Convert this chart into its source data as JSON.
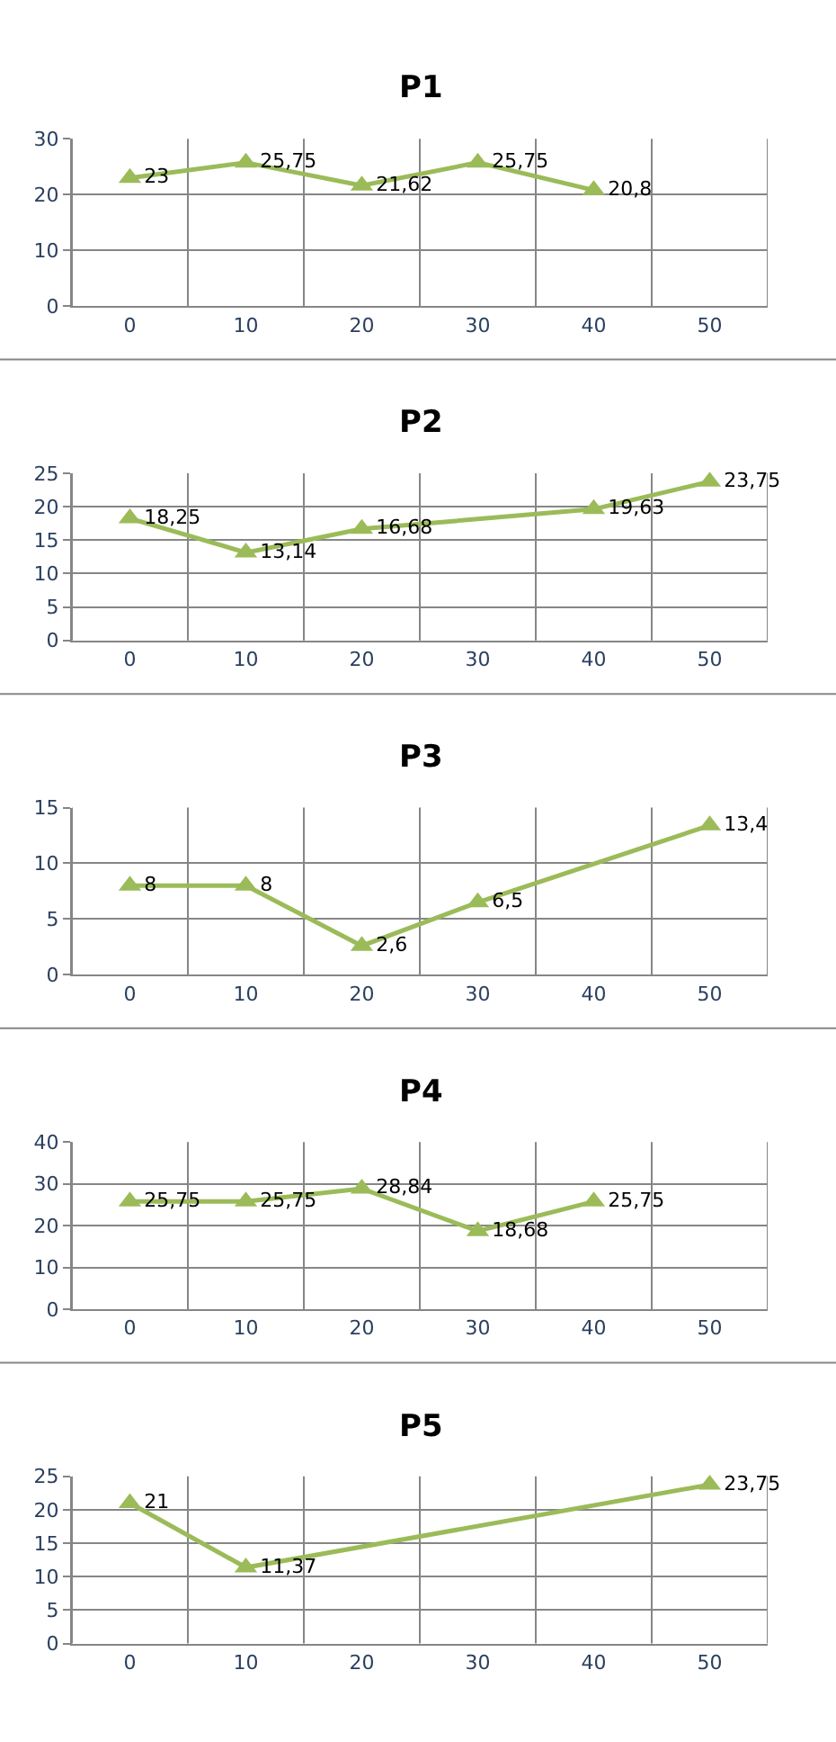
{
  "chart_data": [
    {
      "type": "line",
      "title": "P1",
      "categories": [
        "0",
        "10",
        "20",
        "30",
        "40",
        "50"
      ],
      "ylim": [
        0,
        30
      ],
      "yticks": [
        0,
        10,
        20,
        30
      ],
      "grid": true,
      "marker": "triangle",
      "line_style": "solid",
      "series": [
        {
          "color": "#9bbb59",
          "values": [
            23,
            25.75,
            21.62,
            25.75,
            20.8,
            null
          ],
          "value_labels": [
            "23",
            "25,75",
            "21,62",
            "25,75",
            "20,8",
            null
          ]
        }
      ]
    },
    {
      "type": "line",
      "title": "P2",
      "categories": [
        "0",
        "10",
        "20",
        "30",
        "40",
        "50"
      ],
      "ylim": [
        0,
        25
      ],
      "yticks": [
        0,
        5,
        10,
        15,
        20,
        25
      ],
      "grid": true,
      "marker": "triangle",
      "line_style": "solid",
      "series": [
        {
          "color": "#9bbb59",
          "values": [
            18.25,
            13.14,
            16.68,
            null,
            19.63,
            23.75
          ],
          "value_labels": [
            "18,25",
            "13,14",
            "16,68",
            null,
            "19,63",
            "23,75"
          ]
        }
      ]
    },
    {
      "type": "line",
      "title": "P3",
      "categories": [
        "0",
        "10",
        "20",
        "30",
        "40",
        "50"
      ],
      "ylim": [
        0,
        15
      ],
      "yticks": [
        0,
        5,
        10,
        15
      ],
      "grid": true,
      "marker": "triangle",
      "line_style": "solid",
      "series": [
        {
          "color": "#9bbb59",
          "values": [
            8,
            8,
            2.6,
            6.5,
            null,
            13.4
          ],
          "value_labels": [
            "8",
            "8",
            "2,6",
            "6,5",
            null,
            "13,4"
          ]
        }
      ]
    },
    {
      "type": "line",
      "title": "P4",
      "categories": [
        "0",
        "10",
        "20",
        "30",
        "40",
        "50"
      ],
      "ylim": [
        0,
        40
      ],
      "yticks": [
        0,
        10,
        20,
        30,
        40
      ],
      "grid": true,
      "marker": "triangle",
      "line_style": "solid",
      "series": [
        {
          "color": "#9bbb59",
          "values": [
            25.75,
            25.75,
            28.84,
            18.68,
            25.75,
            null
          ],
          "value_labels": [
            "25,75",
            "25,75",
            "28,84",
            "18,68",
            "25,75",
            null
          ]
        }
      ]
    },
    {
      "type": "line",
      "title": "P5",
      "categories": [
        "0",
        "10",
        "20",
        "30",
        "40",
        "50"
      ],
      "ylim": [
        0,
        25
      ],
      "yticks": [
        0,
        5,
        10,
        15,
        20,
        25
      ],
      "grid": true,
      "marker": "triangle",
      "line_style": "solid",
      "series": [
        {
          "color": "#9bbb59",
          "values": [
            21,
            11.37,
            null,
            null,
            null,
            23.75
          ],
          "value_labels": [
            "21",
            "11,37",
            null,
            null,
            null,
            "23,75"
          ]
        }
      ]
    }
  ]
}
